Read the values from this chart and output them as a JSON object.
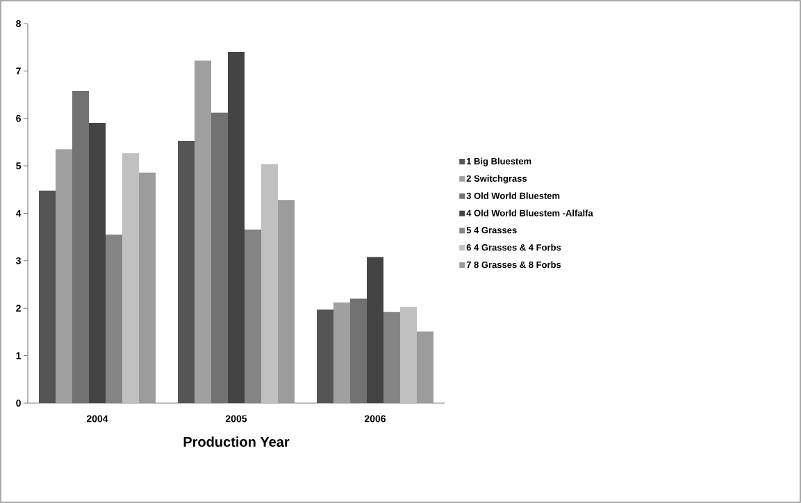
{
  "chart_data": {
    "type": "bar",
    "xlabel": "Production Year",
    "categories": [
      "2004",
      "2005",
      "2006"
    ],
    "series": [
      {
        "name": "1 Big Bluestem",
        "color": "#555555",
        "values": [
          4.48,
          5.53,
          1.97
        ]
      },
      {
        "name": "2 Switchgrass",
        "color": "#a0a0a0",
        "values": [
          5.35,
          7.22,
          2.12
        ]
      },
      {
        "name": "3 Old World Bluestem",
        "color": "#727272",
        "values": [
          6.58,
          6.12,
          2.2
        ]
      },
      {
        "name": "4 Old World Bluestem -Alfalfa",
        "color": "#444444",
        "values": [
          5.91,
          7.4,
          3.08
        ]
      },
      {
        "name": "5 4 Grasses",
        "color": "#848484",
        "values": [
          3.55,
          3.66,
          1.92
        ]
      },
      {
        "name": "6 4 Grasses & 4 Forbs",
        "color": "#c0c0c0",
        "values": [
          5.27,
          5.04,
          2.03
        ]
      },
      {
        "name": "7 8 Grasses & 8 Forbs",
        "color": "#9c9c9c",
        "values": [
          4.86,
          4.28,
          1.51
        ]
      }
    ],
    "ylim": [
      0,
      8
    ],
    "yticks": [
      0,
      1,
      2,
      3,
      4,
      5,
      6,
      7,
      8
    ],
    "grid": false,
    "legend": "right"
  }
}
